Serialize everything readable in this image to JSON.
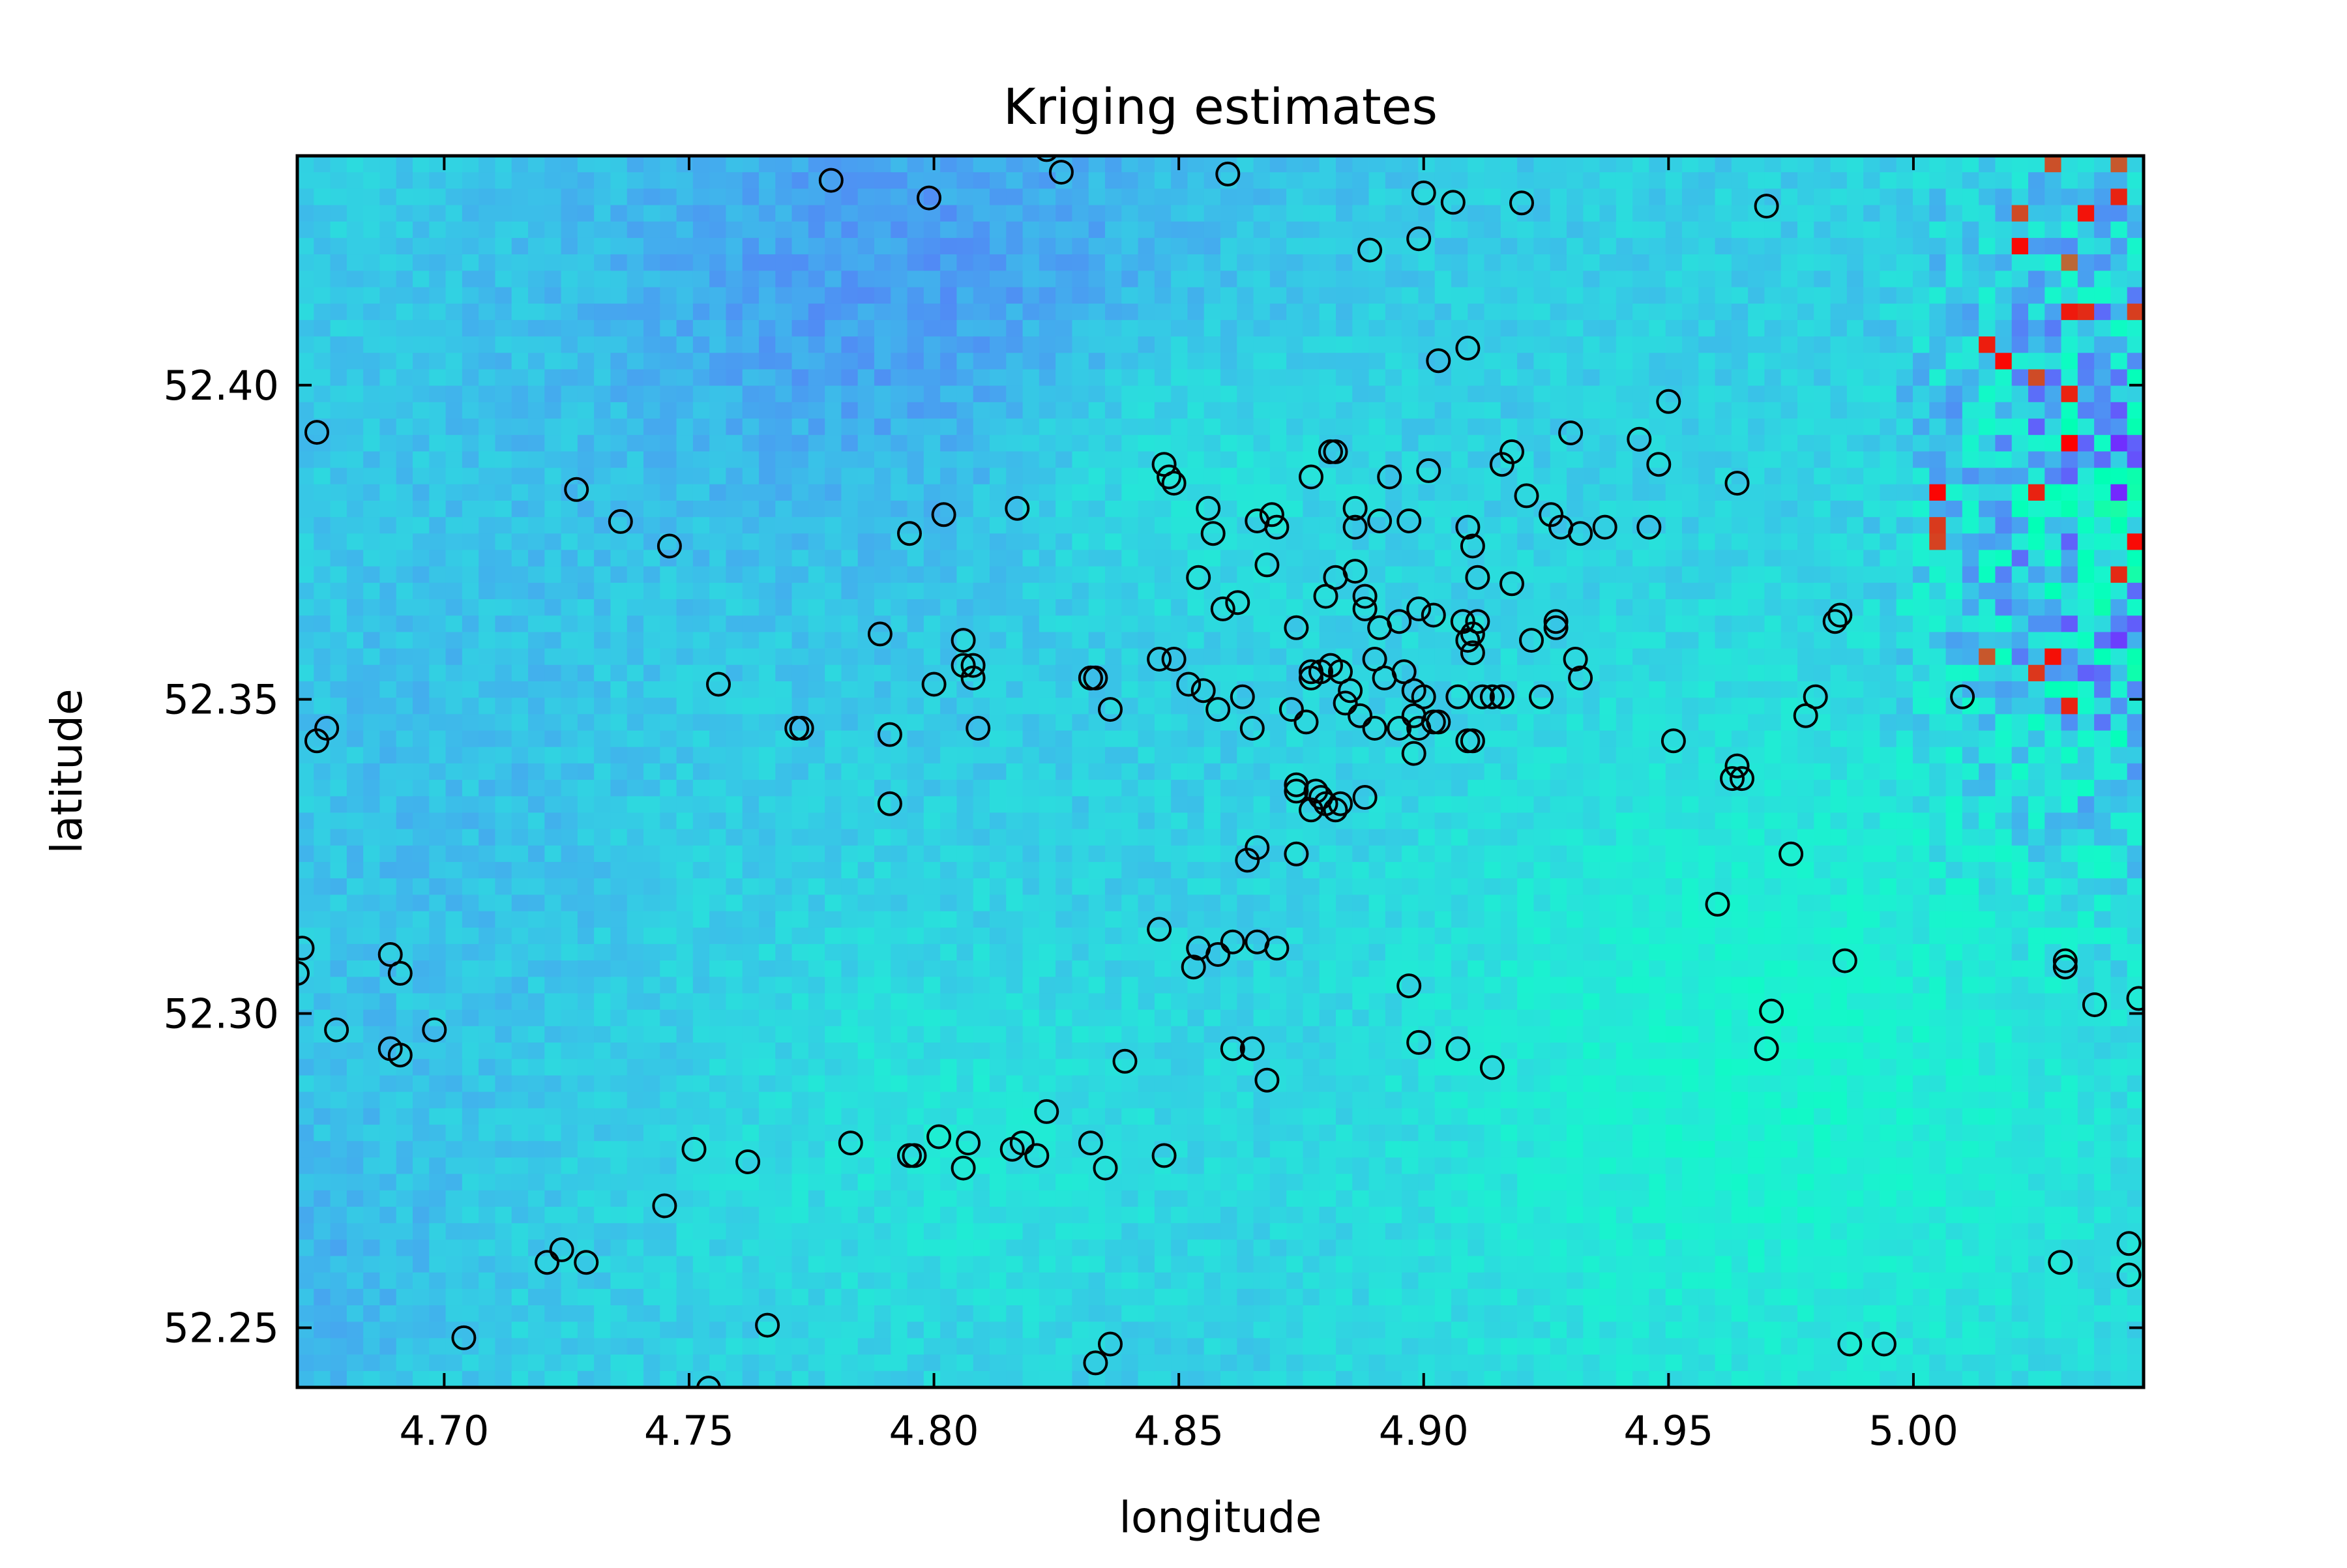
{
  "chart_data": {
    "type": "heatmap",
    "title": "Kriging estimates",
    "xlabel": "longitude",
    "ylabel": "latitude",
    "xlim": [
      4.67,
      5.047
    ],
    "ylim": [
      52.2405,
      52.4365
    ],
    "x_ticks": [
      4.7,
      4.75,
      4.8,
      4.85,
      4.9,
      4.95,
      5.0
    ],
    "x_tick_labels": [
      "4.70",
      "4.75",
      "4.80",
      "4.85",
      "4.90",
      "4.95",
      "5.00"
    ],
    "y_ticks": [
      52.25,
      52.3,
      52.35,
      52.4
    ],
    "y_tick_labels": [
      "52.25",
      "52.30",
      "52.35",
      "52.40"
    ],
    "colormap": "rainbow",
    "grid": false,
    "heatmap_description_regions": {
      "low_values_color": "#3f7ef2",
      "mid_values_color": "#22c8e6",
      "high_values_color": "#7ff5b0",
      "peak_values_color": "#ff2200"
    },
    "observation_marker": {
      "shape": "open-circle",
      "edge_color": "#000000"
    },
    "observations": {
      "x": [
        4.779,
        4.799,
        4.823,
        4.826,
        4.86,
        4.9,
        4.906,
        4.92,
        4.97,
        4.889,
        4.899,
        4.909,
        4.903,
        4.674,
        4.727,
        4.736,
        4.746,
        4.795,
        4.802,
        4.817,
        4.847,
        4.849,
        4.848,
        4.856,
        4.857,
        4.854,
        4.877,
        4.869,
        4.87,
        4.866,
        4.881,
        4.882,
        4.886,
        4.891,
        4.886,
        4.893,
        4.897,
        4.901,
        4.909,
        4.91,
        4.911,
        4.918,
        4.916,
        4.921,
        4.93,
        4.926,
        4.928,
        4.932,
        4.937,
        4.944,
        4.946,
        4.948,
        4.95,
        4.964,
        4.882,
        4.888,
        4.88,
        4.888,
        4.886,
        4.895,
        4.899,
        4.902,
        4.908,
        4.91,
        4.91,
        4.911,
        4.918,
        4.922,
        4.927,
        4.927,
        4.931,
        4.932,
        4.859,
        4.862,
        4.868,
        4.874,
        4.877,
        4.879,
        4.881,
        4.885,
        4.89,
        4.891,
        4.896,
        4.898,
        4.898,
        4.9,
        4.902,
        4.907,
        4.909,
        4.912,
        4.914,
        4.916,
        4.924,
        4.903,
        4.898,
        4.895,
        4.899,
        4.909,
        4.91,
        4.892,
        4.89,
        4.887,
        4.884,
        4.883,
        4.877,
        4.876,
        4.873,
        4.849,
        4.846,
        4.852,
        4.855,
        4.858,
        4.863,
        4.865,
        4.874,
        4.877,
        4.879,
        4.88,
        4.883,
        4.888,
        4.806,
        4.806,
        4.808,
        4.808,
        4.8,
        4.809,
        4.789,
        4.791,
        4.791,
        4.772,
        4.773,
        4.756,
        4.676,
        4.674,
        4.832,
        4.833,
        4.836,
        4.832,
        4.985,
        4.984,
        4.98,
        4.978,
        5.01,
        4.951,
        4.964,
        4.963,
        4.965,
        4.975,
        4.96,
        4.986,
        5.031,
        5.031,
        5.037,
        5.046,
        4.971,
        4.97,
        4.671,
        4.67,
        4.689,
        4.691,
        4.678,
        4.698,
        4.689,
        4.691,
        4.846,
        4.853,
        4.854,
        4.858,
        4.861,
        4.866,
        4.87,
        4.861,
        4.865,
        4.868,
        4.839,
        4.897,
        4.899,
        4.907,
        4.914,
        4.864,
        4.866,
        4.874,
        4.878,
        4.882,
        4.874,
        4.751,
        4.762,
        4.783,
        4.795,
        4.796,
        4.801,
        4.806,
        4.807,
        4.816,
        4.818,
        4.821,
        4.823,
        4.832,
        4.835,
        4.847,
        4.745,
        4.721,
        4.724,
        4.729,
        4.766,
        4.704,
        4.754,
        4.833,
        4.836,
        5.03,
        5.044,
        5.044,
        4.987,
        4.994
      ],
      "y": [
        52.4326,
        52.4298,
        52.4375,
        52.4339,
        52.4336,
        52.4306,
        52.4291,
        52.429,
        52.4285,
        52.4215,
        52.4233,
        52.4059,
        52.4039,
        52.3925,
        52.3834,
        52.3783,
        52.3744,
        52.3764,
        52.3794,
        52.3804,
        52.3874,
        52.3844,
        52.3854,
        52.3804,
        52.3764,
        52.3694,
        52.3854,
        52.3794,
        52.3774,
        52.3784,
        52.3894,
        52.3894,
        52.3804,
        52.3784,
        52.3774,
        52.3854,
        52.3784,
        52.3864,
        52.3774,
        52.3744,
        52.3694,
        52.3894,
        52.3874,
        52.3824,
        52.3924,
        52.3794,
        52.3774,
        52.3764,
        52.3774,
        52.3914,
        52.3774,
        52.3874,
        52.3974,
        52.3844,
        52.3694,
        52.3664,
        52.3664,
        52.3644,
        52.3704,
        52.3624,
        52.3644,
        52.3634,
        52.3624,
        52.3574,
        52.3604,
        52.3624,
        52.3684,
        52.3594,
        52.3614,
        52.3624,
        52.3564,
        52.3534,
        52.3644,
        52.3654,
        52.3714,
        52.3614,
        52.3544,
        52.3544,
        52.3554,
        52.3514,
        52.3564,
        52.3614,
        52.3544,
        52.3514,
        52.3474,
        52.3504,
        52.3464,
        52.3504,
        52.3434,
        52.3504,
        52.3504,
        52.3504,
        52.3504,
        52.3464,
        52.3414,
        52.3454,
        52.3454,
        52.3594,
        52.3434,
        52.3534,
        52.3454,
        52.3474,
        52.3494,
        52.3544,
        52.3534,
        52.3464,
        52.3484,
        52.3564,
        52.3564,
        52.3524,
        52.3514,
        52.3484,
        52.3504,
        52.3454,
        52.3364,
        52.3324,
        52.3344,
        52.3334,
        52.3334,
        52.3344,
        52.3594,
        52.3554,
        52.3534,
        52.3554,
        52.3524,
        52.3454,
        52.3604,
        52.3444,
        52.3334,
        52.3454,
        52.3454,
        52.3524,
        52.3454,
        52.3434,
        52.3534,
        52.3534,
        52.3484,
        52.3534,
        52.3634,
        52.3624,
        52.3504,
        52.3474,
        52.3504,
        52.3434,
        52.3394,
        52.3374,
        52.3374,
        52.3254,
        52.3174,
        52.3084,
        52.3084,
        52.3074,
        52.3014,
        52.3024,
        52.3004,
        52.2944,
        52.3104,
        52.3064,
        52.3094,
        52.3064,
        52.2974,
        52.2974,
        52.2944,
        52.2934,
        52.3134,
        52.3074,
        52.3104,
        52.3094,
        52.3114,
        52.3114,
        52.3104,
        52.2944,
        52.2944,
        52.2894,
        52.2924,
        52.3044,
        52.2954,
        52.2944,
        52.2914,
        52.3244,
        52.3264,
        52.3254,
        52.3354,
        52.3324,
        52.3354,
        52.2784,
        52.2764,
        52.2794,
        52.2774,
        52.2774,
        52.2804,
        52.2754,
        52.2794,
        52.2784,
        52.2794,
        52.2774,
        52.2844,
        52.2794,
        52.2754,
        52.2774,
        52.2694,
        52.2604,
        52.2624,
        52.2604,
        52.2504,
        52.2484,
        52.2404,
        52.2444,
        52.2474,
        52.2604,
        52.2634,
        52.2584,
        52.2474,
        52.2474
      ]
    }
  }
}
